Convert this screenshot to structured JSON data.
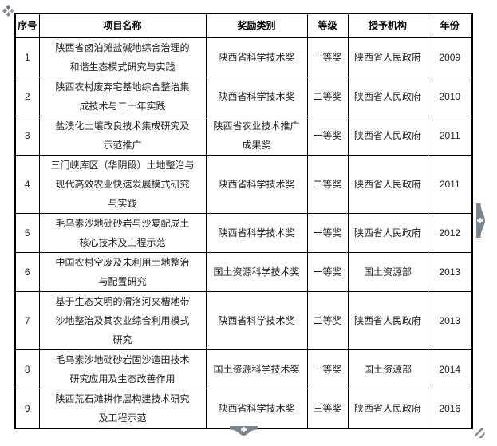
{
  "colors": {
    "table_border": "#000000",
    "body_text": "#222222",
    "control_gray": "#7b8590",
    "control_glyph": "#ffffff",
    "handle_gray": "#767e88"
  },
  "icons": {
    "move_handle": "table-move-handle-icon",
    "expand_right": "expand-right-plus-icon",
    "expand_bottom": "expand-down-plus-icon",
    "resize_grip": "table-resize-grip-icon"
  },
  "controls": {
    "expand_right_glyph": "+",
    "expand_bottom_glyph": "+"
  },
  "table": {
    "headers": {
      "no": "序号",
      "project": "项目名称",
      "category": "奖励类别",
      "grade": "等级",
      "agency": "授予机构",
      "year": "年份"
    },
    "rows": [
      {
        "no": "1",
        "project": "陕西省卤泊滩盐碱地综合治理的\n和谐生态模式研究与实践",
        "category": "陕西省科学技术奖",
        "grade": "一等奖",
        "agency": "陕西省人民政府",
        "year": "2009"
      },
      {
        "no": "2",
        "project": "陕西农村废弃宅基地综合整治集\n成技术与二十年实践",
        "category": "陕西省科学技术奖",
        "grade": "二等奖",
        "agency": "陕西省人民政府",
        "year": "2010"
      },
      {
        "no": "3",
        "project": "盐渍化土壤改良技术集成研究及\n示范推广",
        "category": "陕西省农业技术推广\n成果奖",
        "grade": "一等奖",
        "agency": "陕西省人民政府",
        "year": "2011"
      },
      {
        "no": "4",
        "project": "三门峡库区（华阴段）土地整治与\n现代高效农业快速发展模式研究\n与实践",
        "category": "陕西省科学技术奖",
        "grade": "二等奖",
        "agency": "陕西省人民政府",
        "year": "2011"
      },
      {
        "no": "5",
        "project": "毛乌素沙地砒砂岩与沙复配成土\n核心技术及工程示范",
        "category": "陕西省科学技术奖",
        "grade": "一等奖",
        "agency": "陕西省人民政府",
        "year": "2012"
      },
      {
        "no": "6",
        "project": "中国农村空废及未利用土地整治\n与配置研究",
        "category": "国土资源科学技术奖",
        "grade": "一等奖",
        "agency": "国土资源部",
        "year": "2013"
      },
      {
        "no": "7",
        "project": "基于生态文明的渭洛河夹槽地带\n沙地整治及其农业综合利用模式\n研究",
        "category": "陕西省科学技术奖",
        "grade": "二等奖",
        "agency": "陕西省人民政府",
        "year": "2013"
      },
      {
        "no": "8",
        "project": "毛乌素沙地砒砂岩固沙造田技术\n研究应用及生态改善作用",
        "category": "国土资源科学技术奖",
        "grade": "一等奖",
        "agency": "国土资源部",
        "year": "2014"
      },
      {
        "no": "9",
        "project": "陕西荒石滩耕作层构建技术研究\n及工程示范",
        "category": "陕西省科学技术奖",
        "grade": "三等奖",
        "agency": "陕西省人民政府",
        "year": "2016"
      }
    ]
  }
}
